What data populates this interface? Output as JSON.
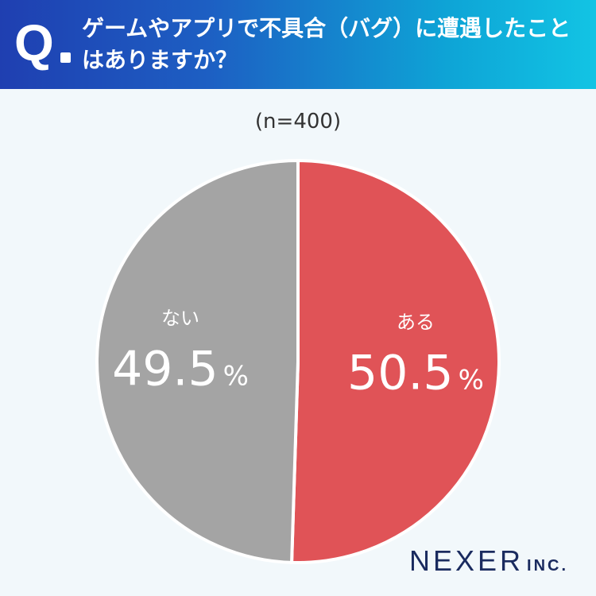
{
  "header": {
    "q_label": "Q",
    "question_line1": "ゲームやアプリで不具合（バグ）に遭遇したこと",
    "question_line2": "はありますか？"
  },
  "sample_size": "(n=400)",
  "chart_data": {
    "type": "pie",
    "categories": [
      "ある",
      "ない"
    ],
    "values": [
      50.5,
      49.5
    ],
    "value_labels": [
      "50.5",
      "49.5"
    ],
    "unit": "%",
    "colors": [
      "#e05357",
      "#a4a4a4"
    ],
    "start": "12 o'clock",
    "direction": "clockwise"
  },
  "brand": {
    "name": "NEXER",
    "suffix": "INC."
  }
}
